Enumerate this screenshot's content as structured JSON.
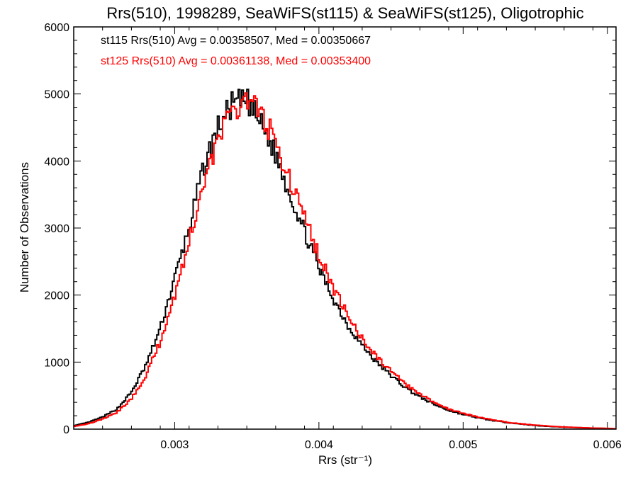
{
  "chart_data": {
    "type": "line",
    "step": true,
    "title": "Rrs(510), 1998289, SeaWiFS(st115) & SeaWiFS(st125), Oligotrophic",
    "xlabel": "Rrs (str⁻¹)",
    "ylabel": "Number of Observations",
    "xlim": [
      0.0023,
      0.00606
    ],
    "ylim": [
      0,
      6000
    ],
    "grid": false,
    "legend_position": "top-left",
    "xticks": [
      0.003,
      0.004,
      0.005,
      0.006
    ],
    "xtick_labels": [
      "0.003",
      "0.004",
      "0.005",
      "0.006"
    ],
    "yticks": [
      0,
      1000,
      2000,
      3000,
      4000,
      5000,
      6000
    ],
    "ytick_labels": [
      "0",
      "1000",
      "2000",
      "3000",
      "4000",
      "5000",
      "6000"
    ],
    "series": [
      {
        "name": "st115 Rrs(510) Avg = 0.00358507, Med = 0.00350667",
        "color": "#000000",
        "x": [
          0.0023,
          0.0024,
          0.0025,
          0.0026,
          0.0027,
          0.0028,
          0.0029,
          0.003,
          0.0031,
          0.0032,
          0.0033,
          0.0034,
          0.0035,
          0.0036,
          0.0037,
          0.0038,
          0.0039,
          0.004,
          0.0041,
          0.0042,
          0.0043,
          0.0044,
          0.0045,
          0.0046,
          0.0047,
          0.0048,
          0.0049,
          0.005,
          0.0051,
          0.0052,
          0.0053,
          0.0054,
          0.0055,
          0.0056,
          0.0057,
          0.0058,
          0.0059,
          0.006,
          0.00606
        ],
        "y": [
          50,
          100,
          180,
          300,
          550,
          950,
          1500,
          2250,
          3000,
          3900,
          4500,
          4850,
          4900,
          4550,
          4100,
          3500,
          2950,
          2400,
          1950,
          1550,
          1250,
          1000,
          800,
          620,
          480,
          370,
          280,
          220,
          170,
          130,
          100,
          75,
          55,
          40,
          30,
          22,
          15,
          10,
          5
        ]
      },
      {
        "name": "st125 Rrs(510) Avg = 0.00361138, Med = 0.00353400",
        "color": "#ff0000",
        "x": [
          0.0023,
          0.0024,
          0.0025,
          0.0026,
          0.0027,
          0.0028,
          0.0029,
          0.003,
          0.0031,
          0.0032,
          0.0033,
          0.0034,
          0.0035,
          0.0036,
          0.0037,
          0.0038,
          0.0039,
          0.004,
          0.0041,
          0.0042,
          0.0043,
          0.0044,
          0.0045,
          0.0046,
          0.0047,
          0.0048,
          0.0049,
          0.005,
          0.0051,
          0.0052,
          0.0053,
          0.0054,
          0.0055,
          0.0056,
          0.0057,
          0.0058,
          0.0059,
          0.006,
          0.00606
        ],
        "y": [
          40,
          80,
          150,
          250,
          450,
          800,
          1300,
          2000,
          2800,
          3700,
          4300,
          4750,
          4950,
          4700,
          4300,
          3700,
          3150,
          2600,
          2100,
          1700,
          1350,
          1080,
          860,
          670,
          520,
          400,
          300,
          235,
          180,
          140,
          105,
          80,
          60,
          45,
          32,
          24,
          16,
          11,
          6
        ]
      }
    ]
  }
}
